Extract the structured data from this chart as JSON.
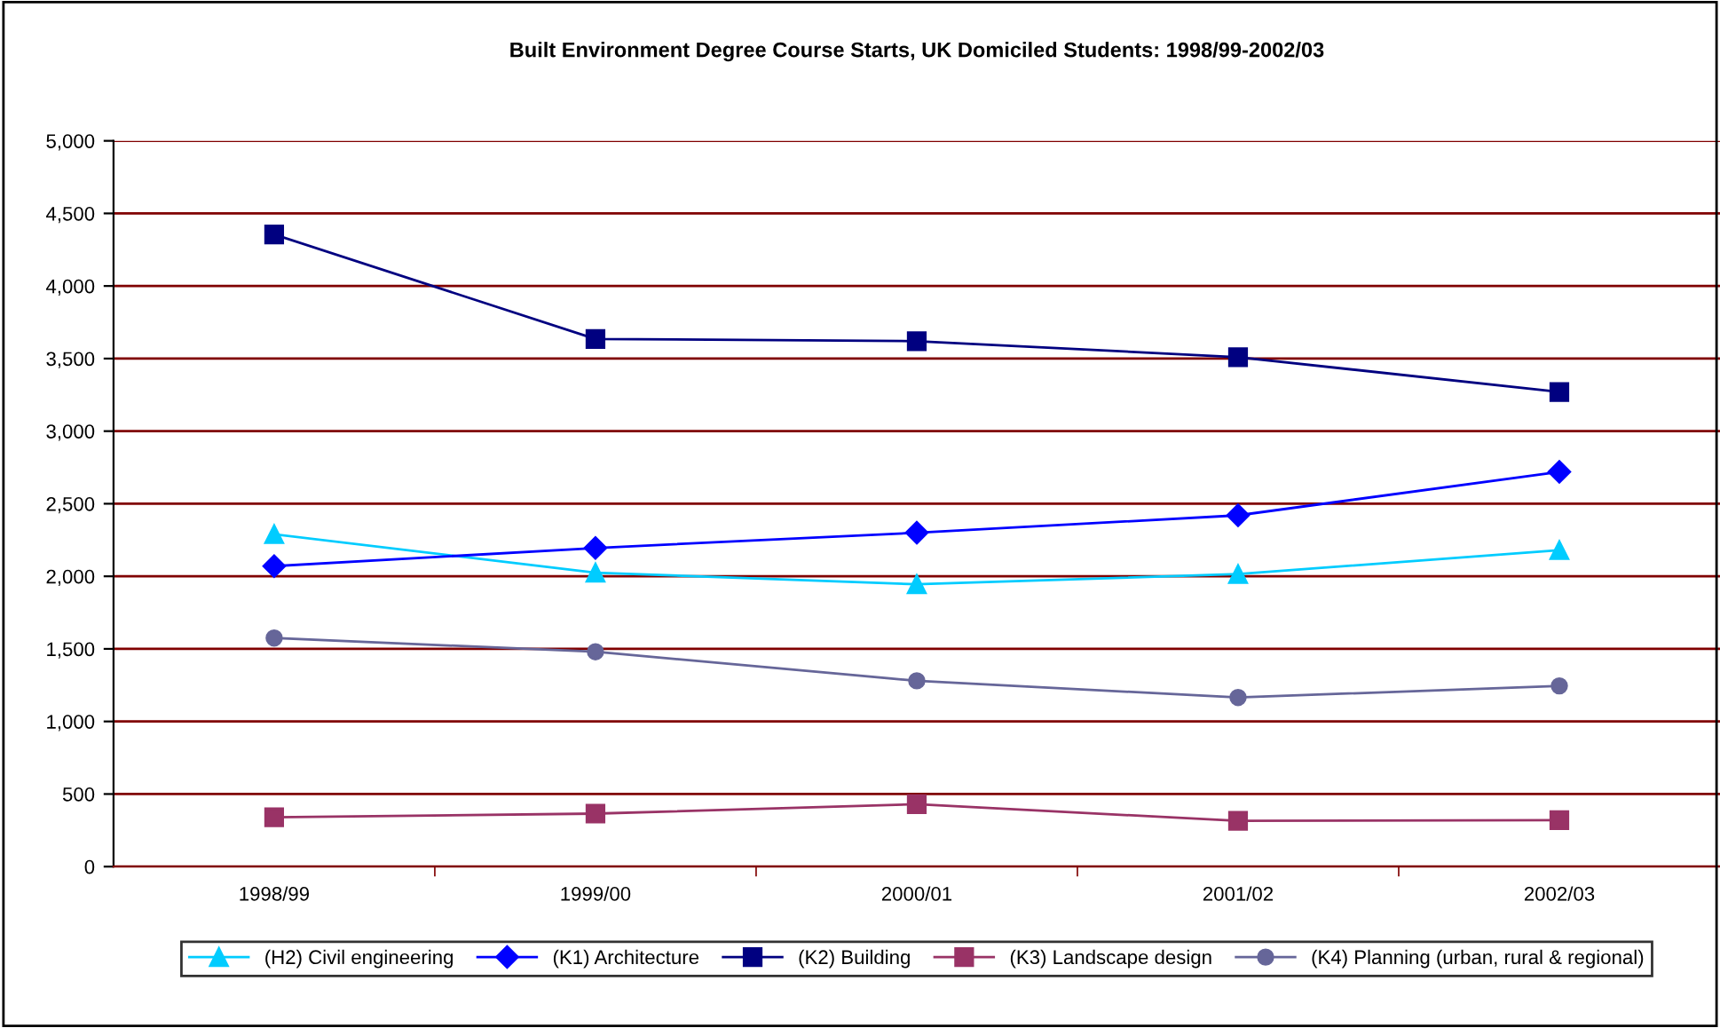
{
  "chart_data": {
    "type": "line",
    "title": "Built Environment Degree Course Starts, UK Domiciled Students: 1998/99-2002/03",
    "categories": [
      "1998/99",
      "1999/00",
      "2000/01",
      "2001/02",
      "2002/03"
    ],
    "series": [
      {
        "name": "(H2) Civil engineering",
        "color": "#00ccff",
        "marker": "triangle",
        "values": [
          2290,
          2025,
          1945,
          2015,
          2180
        ]
      },
      {
        "name": "(K1) Architecture",
        "color": "#0000ff",
        "marker": "diamond",
        "values": [
          2070,
          2195,
          2300,
          2420,
          2720
        ]
      },
      {
        "name": "(K2) Building",
        "color": "#000080",
        "marker": "square",
        "values": [
          4355,
          3635,
          3620,
          3510,
          3270
        ]
      },
      {
        "name": "(K3) Landscape design",
        "color": "#993366",
        "marker": "square",
        "values": [
          340,
          365,
          430,
          315,
          320
        ]
      },
      {
        "name": "(K4) Planning (urban, rural & regional)",
        "color": "#666699",
        "marker": "circle",
        "values": [
          1575,
          1480,
          1280,
          1165,
          1245
        ]
      }
    ],
    "ylim": [
      0,
      5000
    ],
    "yticks": [
      {
        "value": 0,
        "label": "0"
      },
      {
        "value": 500,
        "label": "500"
      },
      {
        "value": 1000,
        "label": "1,000"
      },
      {
        "value": 1500,
        "label": "1,500"
      },
      {
        "value": 2000,
        "label": "2,000"
      },
      {
        "value": 2500,
        "label": "2,500"
      },
      {
        "value": 3000,
        "label": "3,000"
      },
      {
        "value": 3500,
        "label": "3,500"
      },
      {
        "value": 4000,
        "label": "4,000"
      },
      {
        "value": 4500,
        "label": "4,500"
      },
      {
        "value": 5000,
        "label": "5,000"
      }
    ],
    "grid": "y",
    "legend": "bottom",
    "line_style": "solid"
  }
}
